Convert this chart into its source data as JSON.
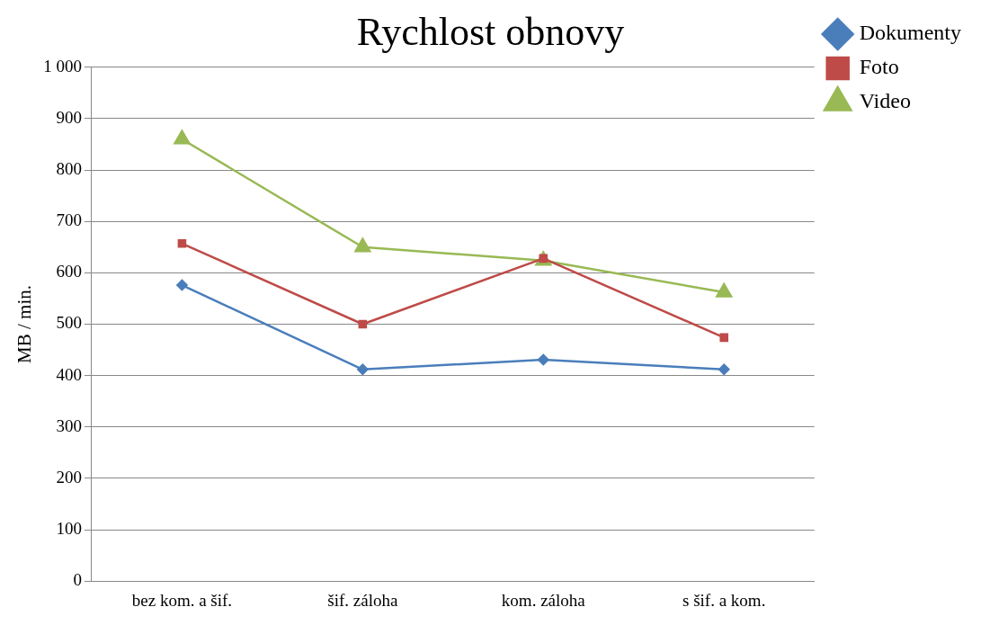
{
  "chart_data": {
    "type": "line",
    "title": "Rychlost obnovy",
    "ylabel": "MB / min.",
    "categories": [
      "bez kom. a šif.",
      "šif. záloha",
      "kom. záloha",
      "s šif. a kom."
    ],
    "series": [
      {
        "name": "Dokumenty",
        "color": "#4a7ebb",
        "marker": "diamond",
        "values": [
          576,
          412,
          431,
          412
        ]
      },
      {
        "name": "Foto",
        "color": "#be4b48",
        "marker": "square",
        "values": [
          657,
          500,
          628,
          474
        ]
      },
      {
        "name": "Video",
        "color": "#98b954",
        "marker": "triangle",
        "values": [
          860,
          650,
          624,
          562
        ]
      }
    ],
    "ylim": [
      0,
      1000
    ],
    "yticks": [
      0,
      100,
      200,
      300,
      400,
      500,
      600,
      700,
      800,
      900,
      {
        "value": 1000,
        "label": "1 000"
      }
    ],
    "grid": "y",
    "legend": "top right",
    "line_style": "solid"
  }
}
